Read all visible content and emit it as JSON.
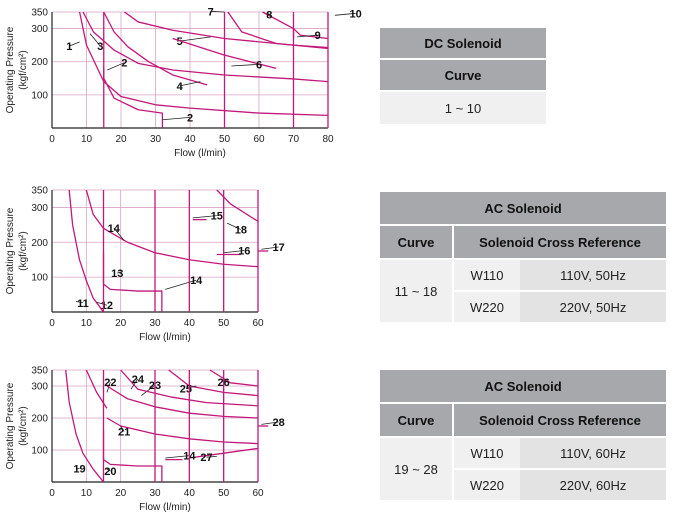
{
  "chart_data": [
    {
      "type": "line",
      "id": "dc",
      "ylabel": "Operating Pressure",
      "yunit": "(kgf/cm²)",
      "xlabel": "Flow  (l/min)",
      "xlim": [
        0,
        80
      ],
      "ylim": [
        0,
        350
      ],
      "xticks": [
        0,
        10,
        20,
        30,
        40,
        50,
        60,
        70,
        80
      ],
      "yticks": [
        100,
        200,
        300,
        350
      ],
      "grid": true,
      "series": [
        {
          "name": "1",
          "x": [
            8,
            10,
            15,
            20,
            30,
            40,
            60,
            80
          ],
          "y": [
            350,
            250,
            140,
            95,
            70,
            60,
            45,
            38
          ],
          "label_at": [
            5,
            235
          ],
          "leader_to": [
            8,
            260
          ]
        },
        {
          "name": "2",
          "x": [
            15,
            15,
            18,
            25,
            32,
            32
          ],
          "y": [
            180,
            150,
            90,
            55,
            45,
            0
          ],
          "label_at": [
            21,
            185
          ],
          "leader_to": [
            16,
            175
          ],
          "label2_at": [
            40,
            20
          ],
          "leader2_to": [
            32,
            25
          ]
        },
        {
          "name": "3",
          "x": [
            9,
            12,
            18,
            25,
            35,
            50,
            70,
            80
          ],
          "y": [
            350,
            290,
            235,
            195,
            175,
            160,
            148,
            140
          ],
          "label_at": [
            14,
            235
          ],
          "leader_to": [
            11,
            285
          ]
        },
        {
          "name": "4",
          "x": [
            15,
            18,
            22,
            28,
            35,
            45
          ],
          "y": [
            350,
            290,
            245,
            200,
            160,
            130
          ],
          "label_at": [
            37,
            115
          ],
          "leader_to": [
            43,
            140
          ]
        },
        {
          "name": "5",
          "x": [
            21,
            25,
            35,
            50,
            70,
            80
          ],
          "y": [
            350,
            320,
            295,
            270,
            250,
            243
          ],
          "label_at": [
            37,
            250
          ],
          "leader_to": [
            46,
            275
          ]
        },
        {
          "name": "6",
          "x": [
            35,
            50,
            65
          ],
          "y": [
            270,
            220,
            180
          ],
          "label_at": [
            60,
            180
          ],
          "leader_to": [
            52,
            187
          ]
        },
        {
          "name": "7",
          "x": [
            51,
            55,
            65,
            80
          ],
          "y": [
            350,
            290,
            255,
            240
          ],
          "label_at": [
            46,
            340
          ],
          "leader_to": [
            50,
            350
          ]
        },
        {
          "name": "8",
          "x": [
            61,
            70,
            70
          ],
          "y": [
            350,
            300,
            270
          ],
          "label_at": [
            63,
            330
          ],
          "leader_to": [
            62,
            345
          ]
        },
        {
          "name": "9",
          "x": [
            70,
            72,
            80
          ],
          "y": [
            300,
            280,
            270
          ],
          "label_at": [
            77,
            268
          ],
          "leader_to": [
            71,
            275
          ]
        },
        {
          "name": "10",
          "x": [
            80,
            80
          ],
          "y": [
            0,
            350
          ],
          "label_at": [
            88,
            334
          ],
          "leader_to": [
            82,
            340
          ]
        },
        {
          "name": "v1",
          "x": [
            15,
            15
          ],
          "y": [
            0,
            350
          ],
          "unlabeled": true
        },
        {
          "name": "v2",
          "x": [
            50,
            50
          ],
          "y": [
            0,
            350
          ],
          "unlabeled": true
        },
        {
          "name": "v3",
          "x": [
            70,
            70
          ],
          "y": [
            0,
            350
          ],
          "unlabeled": true
        }
      ]
    },
    {
      "type": "line",
      "id": "ac50",
      "ylabel": "Operating Pressure",
      "yunit": "(kgf/cm²)",
      "xlabel": "Flow  (l/min)",
      "xlim": [
        0,
        60
      ],
      "ylim": [
        0,
        350
      ],
      "xticks": [
        0,
        10,
        20,
        30,
        40,
        50,
        60
      ],
      "yticks": [
        100,
        200,
        300,
        350
      ],
      "grid": true,
      "series": [
        {
          "name": "11",
          "x": [
            5,
            6,
            8,
            10,
            12,
            15
          ],
          "y": [
            350,
            250,
            150,
            90,
            40,
            0
          ],
          "label_at": [
            9,
            15
          ],
          "leader_to": [
            7,
            30
          ]
        },
        {
          "name": "12",
          "x": [
            10,
            12,
            15
          ],
          "y": [
            350,
            280,
            240
          ],
          "label_at": [
            16,
            8
          ],
          "leader_to": [
            13,
            28
          ]
        },
        {
          "name": "13",
          "x": [
            15,
            22,
            30,
            40,
            50,
            60
          ],
          "y": [
            240,
            200,
            170,
            150,
            137,
            130
          ],
          "label_at": [
            19,
            100
          ],
          "leader_to": [
            20,
            115
          ]
        },
        {
          "name": "14",
          "x": [
            15,
            15,
            17,
            25,
            32,
            32
          ],
          "y": [
            170,
            80,
            65,
            60,
            60,
            0
          ],
          "label_at": [
            18,
            230
          ],
          "leader_to": [
            21,
            205
          ],
          "label2_at": [
            42,
            80
          ],
          "leader2_to": [
            33,
            65
          ]
        },
        {
          "name": "15",
          "x": [
            41,
            45
          ],
          "y": [
            265,
            265
          ],
          "label_at": [
            48,
            265
          ],
          "leader_to": [
            41,
            270
          ]
        },
        {
          "name": "16",
          "x": [
            48,
            55
          ],
          "y": [
            165,
            165
          ],
          "label_at": [
            56,
            165
          ],
          "leader_to": [
            50,
            170
          ]
        },
        {
          "name": "17",
          "x": [
            60,
            63
          ],
          "y": [
            175,
            175
          ],
          "label_at": [
            66,
            175
          ],
          "leader_to": [
            61,
            180
          ]
        },
        {
          "name": "18",
          "x": [
            48,
            52,
            60
          ],
          "y": [
            350,
            310,
            260
          ],
          "label_at": [
            55,
            225
          ],
          "leader_to": [
            51,
            255
          ]
        },
        {
          "name": "v1",
          "x": [
            15,
            15
          ],
          "y": [
            0,
            350
          ],
          "unlabeled": true
        },
        {
          "name": "v2",
          "x": [
            30,
            30
          ],
          "y": [
            0,
            350
          ],
          "unlabeled": true
        },
        {
          "name": "v3",
          "x": [
            40,
            40
          ],
          "y": [
            0,
            350
          ],
          "unlabeled": true
        },
        {
          "name": "v4",
          "x": [
            50,
            50
          ],
          "y": [
            0,
            350
          ],
          "unlabeled": true
        },
        {
          "name": "v5",
          "x": [
            60,
            60
          ],
          "y": [
            0,
            350
          ],
          "unlabeled": true
        }
      ]
    },
    {
      "type": "line",
      "id": "ac60",
      "ylabel": "Operating Pressure",
      "yunit": "(kgf/cm²)",
      "xlabel": "Flow  (l/min)",
      "xlim": [
        0,
        60
      ],
      "ylim": [
        0,
        350
      ],
      "xticks": [
        0,
        10,
        20,
        30,
        40,
        50,
        60
      ],
      "yticks": [
        100,
        200,
        300,
        350
      ],
      "grid": true,
      "series": [
        {
          "name": "19",
          "x": [
            4,
            5,
            7,
            9,
            12,
            15
          ],
          "y": [
            350,
            250,
            150,
            90,
            40,
            0
          ],
          "label_at": [
            8,
            30
          ],
          "leader_to": [
            7,
            40
          ]
        },
        {
          "name": "20",
          "x": [
            15,
            15,
            17,
            25,
            32,
            32
          ],
          "y": [
            160,
            70,
            55,
            50,
            50,
            0
          ],
          "label_at": [
            17,
            22
          ],
          "leader_to": [
            16,
            40
          ]
        },
        {
          "name": "21",
          "x": [
            16,
            20,
            30,
            40,
            50,
            60
          ],
          "y": [
            200,
            175,
            150,
            135,
            125,
            120
          ],
          "label_at": [
            21,
            145
          ],
          "leader_to": [
            20,
            175
          ]
        },
        {
          "name": "22",
          "x": [
            10,
            13,
            16
          ],
          "y": [
            350,
            280,
            230
          ],
          "label_at": [
            17,
            300
          ],
          "leader_to": [
            16,
            280
          ]
        },
        {
          "name": "23",
          "x": [
            16,
            22,
            30,
            40,
            50,
            60
          ],
          "y": [
            300,
            260,
            235,
            215,
            205,
            200
          ],
          "label_at": [
            30,
            290
          ],
          "leader_to": [
            26,
            270
          ]
        },
        {
          "name": "24",
          "x": [
            20,
            25,
            35,
            45,
            60
          ],
          "y": [
            350,
            290,
            265,
            248,
            238
          ],
          "label_at": [
            25,
            310
          ],
          "leader_to": [
            23,
            290
          ]
        },
        {
          "name": "25",
          "x": [
            34,
            40,
            50,
            60
          ],
          "y": [
            350,
            300,
            280,
            270
          ],
          "label_at": [
            39,
            280
          ],
          "leader_to": [
            42,
            300
          ]
        },
        {
          "name": "26",
          "x": [
            46,
            52,
            60
          ],
          "y": [
            350,
            310,
            300
          ],
          "label_at": [
            50,
            300
          ],
          "leader_to": [
            51,
            315
          ]
        },
        {
          "name": "27",
          "x": [
            40,
            50,
            60
          ],
          "y": [
            75,
            90,
            105
          ],
          "label_at": [
            45,
            65
          ],
          "leader_to": [
            48,
            80
          ]
        },
        {
          "name": "28",
          "x": [
            60,
            63
          ],
          "y": [
            175,
            175
          ],
          "label_at": [
            66,
            175
          ],
          "leader_to": [
            61,
            180
          ]
        },
        {
          "name": "14",
          "x": [
            33,
            38
          ],
          "y": [
            70,
            70
          ],
          "label_at": [
            40,
            70
          ],
          "leader_to": [
            33,
            75
          ]
        },
        {
          "name": "v1",
          "x": [
            15,
            15
          ],
          "y": [
            0,
            350
          ],
          "unlabeled": true
        },
        {
          "name": "v2",
          "x": [
            30,
            30
          ],
          "y": [
            0,
            350
          ],
          "unlabeled": true
        },
        {
          "name": "v3",
          "x": [
            40,
            40
          ],
          "y": [
            0,
            350
          ],
          "unlabeled": true
        },
        {
          "name": "v4",
          "x": [
            50,
            50
          ],
          "y": [
            0,
            350
          ],
          "unlabeled": true
        },
        {
          "name": "v5",
          "x": [
            60,
            60
          ],
          "y": [
            0,
            350
          ],
          "unlabeled": true
        }
      ]
    }
  ],
  "tables": {
    "dc": {
      "title": "DC Solenoid",
      "curve_header": "Curve",
      "curve_range": "1 ~ 10"
    },
    "ac50": {
      "title": "AC Solenoid",
      "curve_header": "Curve",
      "ref_header": "Solenoid Cross Reference",
      "curve_range": "11 ~ 18",
      "rows": [
        {
          "code": "W110",
          "spec": "110V, 50Hz"
        },
        {
          "code": "W220",
          "spec": "220V, 50Hz"
        }
      ]
    },
    "ac60": {
      "title": "AC Solenoid",
      "curve_header": "Curve",
      "ref_header": "Solenoid Cross Reference",
      "curve_range": "19 ~ 28",
      "rows": [
        {
          "code": "W110",
          "spec": "110V, 60Hz"
        },
        {
          "code": "W220",
          "spec": "220V, 60Hz"
        }
      ]
    }
  },
  "colors": {
    "curve": "#c2187a",
    "grid": "#d9a3c3",
    "axis": "#222222",
    "header_bg": "#a6a8ab",
    "cell_bg": "#f0f0f1"
  }
}
